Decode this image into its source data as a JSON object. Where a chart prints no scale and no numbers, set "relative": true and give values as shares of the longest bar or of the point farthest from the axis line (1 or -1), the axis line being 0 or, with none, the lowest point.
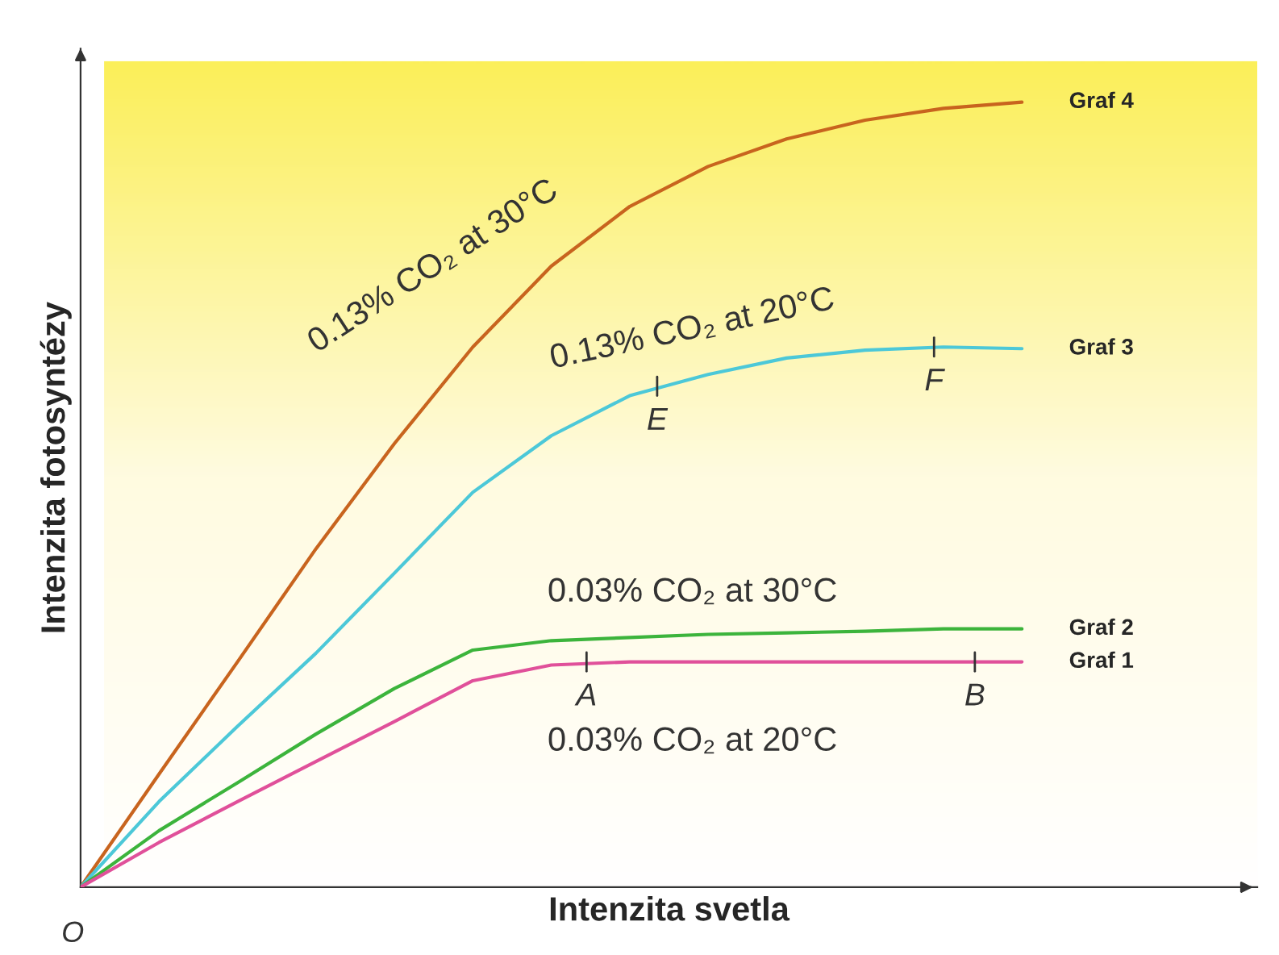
{
  "chart_data": {
    "type": "line",
    "relative": true,
    "xlabel": "Intenzita svetla",
    "ylabel": "Intenzita fotosyntézy",
    "categories": [
      null,
      null,
      null,
      null,
      null,
      null,
      null,
      null,
      null,
      null,
      null,
      null,
      null
    ],
    "series": [
      {
        "name": "Graf 4",
        "color": "#c8641e",
        "values": [
          0,
          0.144,
          0.287,
          0.431,
          0.565,
          0.688,
          0.791,
          0.867,
          0.918,
          0.953,
          0.977,
          0.992,
          1
        ]
      },
      {
        "name": "Graf 3",
        "color": "#4cc8d8",
        "values": [
          0,
          0.109,
          0.205,
          0.298,
          0.4,
          0.503,
          0.575,
          0.626,
          0.653,
          0.674,
          0.684,
          0.688,
          0.686
        ]
      },
      {
        "name": "Graf 2",
        "color": "#3cb43c",
        "values": [
          0,
          0.072,
          0.133,
          0.195,
          0.253,
          0.302,
          0.314,
          0.318,
          0.322,
          0.324,
          0.326,
          0.329,
          0.329
        ]
      },
      {
        "name": "Graf 1",
        "color": "#e0509a",
        "values": [
          0,
          0.057,
          0.109,
          0.16,
          0.211,
          0.263,
          0.283,
          0.287,
          0.287,
          0.287,
          0.287,
          0.287,
          0.287
        ]
      }
    ],
    "annotations": [
      "0.13% CO₂ at 30°C",
      "0.13% CO₂ at 20°C",
      "0.03% CO₂ at 30°C",
      "0.03% CO₂ at 20°C",
      "A",
      "B",
      "E",
      "F",
      "O"
    ],
    "tick_labels": false
  }
}
